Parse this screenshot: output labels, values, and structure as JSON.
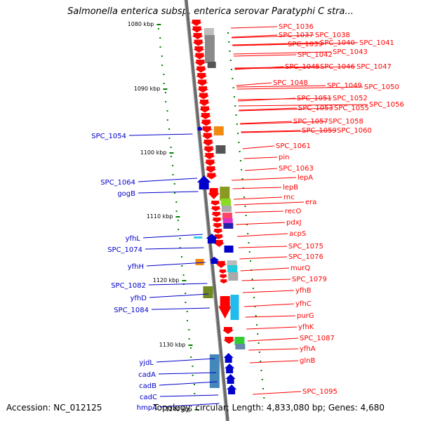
{
  "title": "Salmonella enterica subsp. enterica serovar Paratyphi C stra...",
  "footer": {
    "accession": "Accession: NC_012125",
    "topology": "Topology: circular; Length: 4,833,080 bp; Genes: 4,680"
  },
  "ticks": [
    "1080 kbp",
    "1090 kbp",
    "1100 kbp",
    "1110 kbp",
    "1120 kbp",
    "1130 kbp",
    "1140 kbp"
  ],
  "colors": {
    "forward": "#ff0000",
    "reverse": "#0000cc",
    "axis": "#808080",
    "dots": "#008000"
  },
  "left_labels": [
    "SPC_1054",
    "SPC_1064",
    "gogB",
    "yfhL",
    "SPC_1074",
    "yfhH",
    "SPC_1082",
    "yfhD",
    "SPC_1084",
    "yjdL",
    "cadA",
    "cadB",
    "cadC",
    "hmpA"
  ],
  "right_labels": [
    "SPC_1036",
    "SPC_1037",
    "SPC_1038",
    "SPC_1039",
    "SPC_1040",
    "SPC_1041",
    "SPC_1042",
    "SPC_1043",
    "SPC_1045",
    "SPC_1046",
    "SPC_1047",
    "SPC_1048",
    "SPC_1049",
    "SPC_1050",
    "SPC_1051",
    "SPC_1052",
    "SPC_1053",
    "SPC_1055",
    "SPC_1056",
    "SPC_1057",
    "SPC_1058",
    "SPC_1059",
    "SPC_1060",
    "SPC_1061",
    "pin",
    "SPC_1063",
    "lepA",
    "lepB",
    "rnc",
    "era",
    "recO",
    "pdxJ",
    "acpS",
    "SPC_1075",
    "SPC_1076",
    "murQ",
    "SPC_1079",
    "yfhB",
    "yfhC",
    "purG",
    "yfhK",
    "SPC_1087",
    "yfhA",
    "glnB",
    "SPC_1095"
  ]
}
